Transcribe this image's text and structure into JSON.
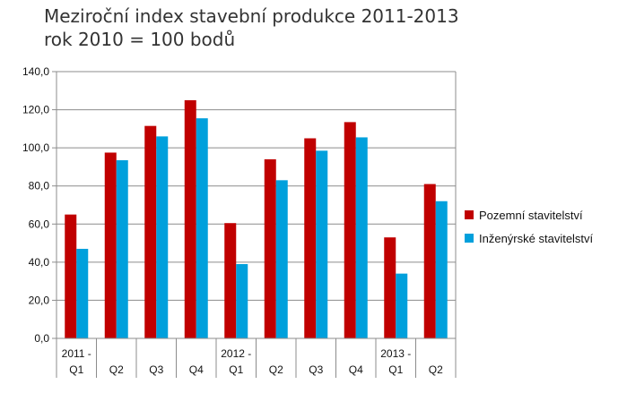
{
  "chart_data": {
    "type": "bar",
    "title": "Meziroční index stavební produkce 2011-2013",
    "subtitle": "rok 2010 = 100 bodů",
    "xlabel": "",
    "ylabel": "",
    "ylim": [
      0,
      140
    ],
    "yticks": [
      "0,0",
      "20,0",
      "40,0",
      "60,0",
      "80,0",
      "100,0",
      "120,0",
      "140,0"
    ],
    "ytick_values": [
      0,
      20,
      40,
      60,
      80,
      100,
      120,
      140
    ],
    "grid": true,
    "legend_position": "right",
    "categories": [
      [
        "2011 -",
        "Q1"
      ],
      [
        "",
        "Q2"
      ],
      [
        "",
        "Q3"
      ],
      [
        "",
        "Q4"
      ],
      [
        "2012 -",
        "Q1"
      ],
      [
        "",
        "Q2"
      ],
      [
        "",
        "Q3"
      ],
      [
        "",
        "Q4"
      ],
      [
        "2013 -",
        "Q1"
      ],
      [
        "",
        "Q2"
      ]
    ],
    "series": [
      {
        "name": "Pozemní stavitelství",
        "color": "#c00000",
        "values": [
          65.0,
          97.5,
          111.5,
          125.0,
          60.5,
          94.0,
          105.0,
          113.5,
          53.0,
          81.0
        ]
      },
      {
        "name": "Inženýrské stavitelství",
        "color": "#00a0dc",
        "values": [
          47.0,
          93.5,
          106.0,
          115.5,
          39.0,
          83.0,
          98.5,
          105.5,
          34.0,
          72.0
        ]
      }
    ]
  }
}
